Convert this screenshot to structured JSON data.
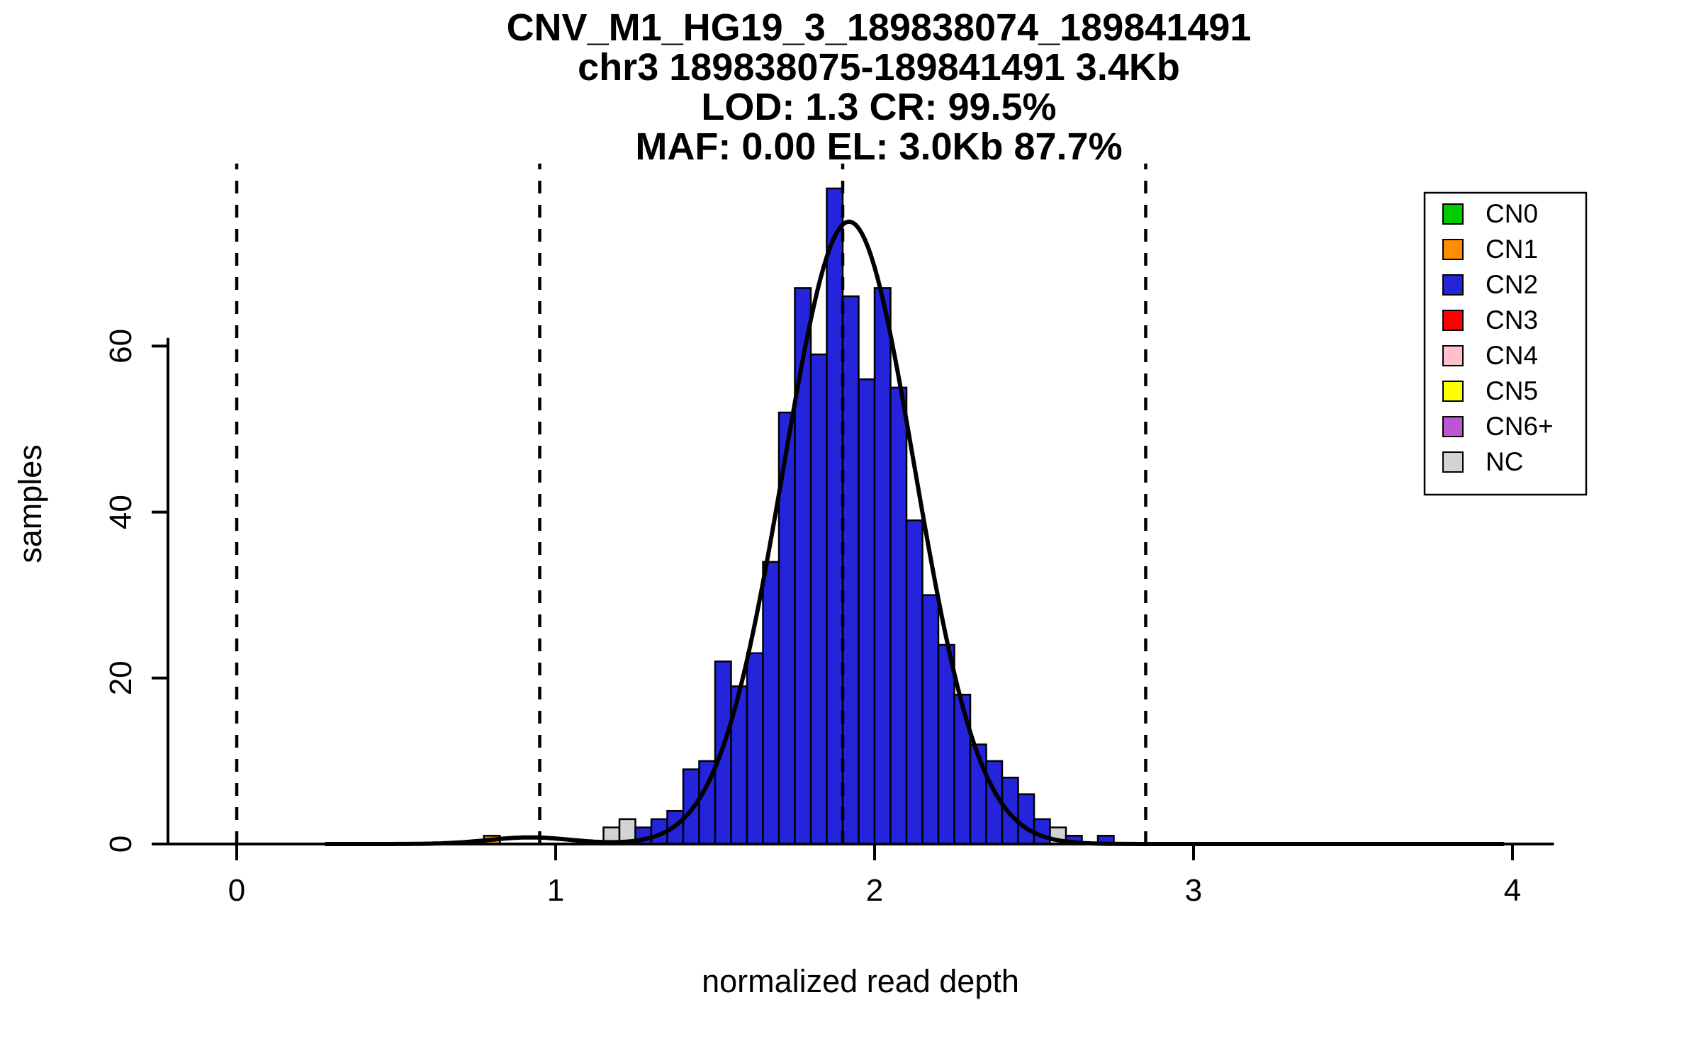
{
  "title": {
    "line1": "CNV_M1_HG19_3_189838074_189841491",
    "line2": "chr3 189838075-189841491 3.4Kb",
    "line3": "LOD: 1.3 CR: 99.5%",
    "line4": "MAF: 0.00 EL: 3.0Kb 87.7%"
  },
  "axes": {
    "xlabel": "normalized read depth",
    "ylabel": "samples"
  },
  "chart_data": {
    "type": "bar",
    "subtype": "histogram-with-density",
    "title": "CNV_M1_HG19_3_189838074_189841491",
    "subtitle_lines": [
      "chr3 189838075-189841491 3.4Kb",
      "LOD: 1.3 CR: 99.5%",
      "MAF: 0.00 EL: 3.0Kb 87.7%"
    ],
    "xlabel": "normalized read depth",
    "ylabel": "samples",
    "xlim": [
      -0.22,
      4.13
    ],
    "ylim": [
      0,
      82
    ],
    "x_ticks": [
      0,
      1,
      2,
      3,
      4
    ],
    "y_ticks": [
      0,
      20,
      40,
      60
    ],
    "y_axis_top": 61,
    "grid": false,
    "bin_width": 0.05,
    "bars": [
      {
        "x": 0.775,
        "count": 1,
        "class": "CN1"
      },
      {
        "x": 1.15,
        "count": 2,
        "class": "NC"
      },
      {
        "x": 1.2,
        "count": 3,
        "class": "NC"
      },
      {
        "x": 1.25,
        "count": 2,
        "class": "CN2"
      },
      {
        "x": 1.3,
        "count": 3,
        "class": "CN2"
      },
      {
        "x": 1.35,
        "count": 4,
        "class": "CN2"
      },
      {
        "x": 1.4,
        "count": 9,
        "class": "CN2"
      },
      {
        "x": 1.45,
        "count": 10,
        "class": "CN2"
      },
      {
        "x": 1.5,
        "count": 22,
        "class": "CN2"
      },
      {
        "x": 1.55,
        "count": 19,
        "class": "CN2"
      },
      {
        "x": 1.6,
        "count": 23,
        "class": "CN2"
      },
      {
        "x": 1.65,
        "count": 34,
        "class": "CN2"
      },
      {
        "x": 1.7,
        "count": 52,
        "class": "CN2"
      },
      {
        "x": 1.75,
        "count": 67,
        "class": "CN2"
      },
      {
        "x": 1.8,
        "count": 59,
        "class": "CN2"
      },
      {
        "x": 1.85,
        "count": 79,
        "class": "CN2"
      },
      {
        "x": 1.9,
        "count": 66,
        "class": "CN2"
      },
      {
        "x": 1.95,
        "count": 56,
        "class": "CN2"
      },
      {
        "x": 2.0,
        "count": 67,
        "class": "CN2"
      },
      {
        "x": 2.05,
        "count": 55,
        "class": "CN2"
      },
      {
        "x": 2.1,
        "count": 39,
        "class": "CN2"
      },
      {
        "x": 2.15,
        "count": 30,
        "class": "CN2"
      },
      {
        "x": 2.2,
        "count": 24,
        "class": "CN2"
      },
      {
        "x": 2.25,
        "count": 18,
        "class": "CN2"
      },
      {
        "x": 2.3,
        "count": 12,
        "class": "CN2"
      },
      {
        "x": 2.35,
        "count": 10,
        "class": "CN2"
      },
      {
        "x": 2.4,
        "count": 8,
        "class": "CN2"
      },
      {
        "x": 2.45,
        "count": 6,
        "class": "CN2"
      },
      {
        "x": 2.5,
        "count": 3,
        "class": "CN2"
      },
      {
        "x": 2.55,
        "count": 2,
        "class": "NC"
      },
      {
        "x": 2.6,
        "count": 1,
        "class": "CN2"
      },
      {
        "x": 2.7,
        "count": 1,
        "class": "CN2"
      }
    ],
    "dashed_vlines": [
      0,
      0.95,
      1.9,
      2.85
    ],
    "density_curve": {
      "x_range": [
        0.28,
        3.97
      ],
      "components": [
        {
          "mean": 1.92,
          "sd": 0.205,
          "peak": 75
        },
        {
          "mean": 0.92,
          "sd": 0.13,
          "peak": 0.8
        }
      ]
    },
    "legend": {
      "position": "top-right",
      "entries": [
        {
          "label": "CN0",
          "color": "#00CC00"
        },
        {
          "label": "CN1",
          "color": "#FF8C00"
        },
        {
          "label": "CN2",
          "color": "#2424DB"
        },
        {
          "label": "CN3",
          "color": "#FF0000"
        },
        {
          "label": "CN4",
          "color": "#FFC0CB"
        },
        {
          "label": "CN5",
          "color": "#FFFF00"
        },
        {
          "label": "CN6+",
          "color": "#BA55D3"
        },
        {
          "label": "NC",
          "color": "#D3D3D3"
        }
      ]
    },
    "colors": {
      "curve": "#000000",
      "axis": "#000000",
      "background": "#FFFFFF"
    }
  }
}
